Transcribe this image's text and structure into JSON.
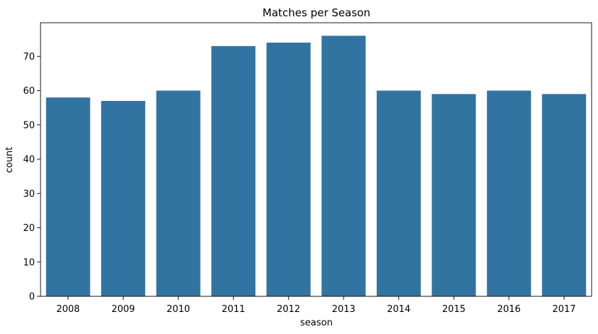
{
  "chart_data": {
    "type": "bar",
    "title": "Matches per Season",
    "xlabel": "season",
    "ylabel": "count",
    "categories": [
      "2008",
      "2009",
      "2010",
      "2011",
      "2012",
      "2013",
      "2014",
      "2015",
      "2016",
      "2017"
    ],
    "values": [
      58,
      57,
      60,
      73,
      74,
      76,
      60,
      59,
      60,
      59
    ],
    "ylim": [
      0,
      79.8
    ],
    "yticks": [
      0,
      10,
      20,
      30,
      40,
      50,
      60,
      70
    ],
    "grid": false,
    "legend": "none",
    "bar_color": "#3274a1"
  }
}
